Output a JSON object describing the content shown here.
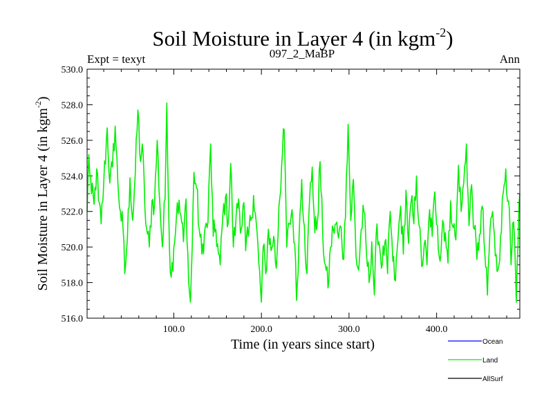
{
  "chart_data": {
    "type": "line",
    "title_main": "Soil Moisture in Layer 4 (in kgm",
    "title_exp": "-2",
    "title_close": ")",
    "subtitle_left": "Expt = texyt",
    "subtitle_center": "097_2_MaBP",
    "subtitle_right": "Ann",
    "xlabel": "Time (in years since start)",
    "ylabel_main": "Soil Moisture in Layer 4 (in kgm",
    "ylabel_exp": "-2",
    "ylabel_close": ")",
    "xlim": [
      1,
      495
    ],
    "ylim": [
      516.0,
      530.0
    ],
    "xticks": [
      100.0,
      200.0,
      300.0,
      400.0
    ],
    "xtick_labels": [
      "100.0",
      "200.0",
      "300.0",
      "400.0"
    ],
    "yticks": [
      516.0,
      518.0,
      520.0,
      522.0,
      524.0,
      526.0,
      528.0,
      530.0
    ],
    "ytick_labels": [
      "516.0",
      "518.0",
      "520.0",
      "522.0",
      "524.0",
      "526.0",
      "528.0",
      "530.0"
    ],
    "legend_position": "bottom-right, outside plot",
    "legend": [
      {
        "name": "Ocean",
        "color": "#0000ff"
      },
      {
        "name": "Land",
        "color": "#00ee00"
      },
      {
        "name": "AllSurf",
        "color": "#000000"
      }
    ],
    "series": [
      {
        "name": "Land",
        "color": "#00ee00",
        "keypoints": [
          [
            1,
            522.0
          ],
          [
            3,
            525.2
          ],
          [
            6,
            523.0
          ],
          [
            9,
            522.4
          ],
          [
            12,
            524.4
          ],
          [
            14,
            522.6
          ],
          [
            17,
            521.3
          ],
          [
            20,
            523.6
          ],
          [
            24,
            526.7
          ],
          [
            27,
            523.6
          ],
          [
            30,
            524.5
          ],
          [
            33,
            526.8
          ],
          [
            36,
            523.7
          ],
          [
            39,
            522.0
          ],
          [
            42,
            521.0
          ],
          [
            44,
            518.5
          ],
          [
            47,
            520.5
          ],
          [
            50,
            523.9
          ],
          [
            53,
            521.5
          ],
          [
            56,
            524.1
          ],
          [
            59,
            527.7
          ],
          [
            62,
            524.8
          ],
          [
            64,
            525.8
          ],
          [
            67,
            522.2
          ],
          [
            69,
            521.0
          ],
          [
            72,
            520.0
          ],
          [
            75,
            522.6
          ],
          [
            78,
            522.4
          ],
          [
            81,
            526.0
          ],
          [
            84,
            522.5
          ],
          [
            87,
            520.0
          ],
          [
            90,
            522.7
          ],
          [
            92,
            528.1
          ],
          [
            95,
            520.0
          ],
          [
            97,
            518.3
          ],
          [
            100,
            520.0
          ],
          [
            104,
            522.5
          ],
          [
            108,
            521.8
          ],
          [
            111,
            520.3
          ],
          [
            114,
            522.7
          ],
          [
            117,
            518.0
          ],
          [
            119,
            516.9
          ],
          [
            121,
            520.0
          ],
          [
            123,
            524.2
          ],
          [
            126,
            523.3
          ],
          [
            129,
            521.0
          ],
          [
            132,
            519.6
          ],
          [
            135,
            520.8
          ],
          [
            139,
            521.4
          ],
          [
            142,
            525.8
          ],
          [
            145,
            520.6
          ],
          [
            148,
            521.0
          ],
          [
            151,
            519.6
          ],
          [
            153,
            519.0
          ],
          [
            156,
            521.8
          ],
          [
            159,
            522.8
          ],
          [
            162,
            521.3
          ],
          [
            165,
            524.7
          ],
          [
            168,
            520.0
          ],
          [
            171,
            521.6
          ],
          [
            174,
            522.7
          ],
          [
            177,
            521.0
          ],
          [
            180,
            522.5
          ],
          [
            182,
            519.8
          ],
          [
            185,
            520.6
          ],
          [
            188,
            521.5
          ],
          [
            191,
            522.9
          ],
          [
            194,
            521.4
          ],
          [
            197,
            519.1
          ],
          [
            200,
            516.9
          ],
          [
            202,
            520.0
          ],
          [
            205,
            518.5
          ],
          [
            208,
            521.0
          ],
          [
            211,
            519.8
          ],
          [
            214,
            520.6
          ],
          [
            217,
            518.8
          ],
          [
            220,
            522.3
          ],
          [
            223,
            524.5
          ],
          [
            226,
            526.6
          ],
          [
            229,
            520.0
          ],
          [
            232,
            521.3
          ],
          [
            235,
            522.1
          ],
          [
            238,
            520.2
          ],
          [
            240,
            517.0
          ],
          [
            243,
            520.6
          ],
          [
            246,
            523.8
          ],
          [
            249,
            521.2
          ],
          [
            252,
            518.5
          ],
          [
            255,
            522.7
          ],
          [
            258,
            524.5
          ],
          [
            261,
            520.8
          ],
          [
            264,
            521.5
          ],
          [
            267,
            524.8
          ],
          [
            270,
            520.6
          ],
          [
            273,
            519.0
          ],
          [
            276,
            517.7
          ],
          [
            279,
            520.0
          ],
          [
            282,
            521.0
          ],
          [
            285,
            521.3
          ],
          [
            288,
            520.5
          ],
          [
            291,
            521.1
          ],
          [
            294,
            519.3
          ],
          [
            297,
            524.0
          ],
          [
            299,
            526.9
          ],
          [
            302,
            521.5
          ],
          [
            305,
            523.8
          ],
          [
            308,
            519.5
          ],
          [
            311,
            518.7
          ],
          [
            314,
            521.0
          ],
          [
            317,
            522.0
          ],
          [
            320,
            519.6
          ],
          [
            323,
            518.0
          ],
          [
            326,
            520.3
          ],
          [
            329,
            517.3
          ],
          [
            332,
            521.3
          ],
          [
            335,
            520.0
          ],
          [
            338,
            519.0
          ],
          [
            341,
            520.3
          ],
          [
            344,
            518.5
          ],
          [
            347,
            522.0
          ],
          [
            350,
            519.2
          ],
          [
            353,
            518.1
          ],
          [
            356,
            520.5
          ],
          [
            359,
            522.3
          ],
          [
            362,
            519.6
          ],
          [
            365,
            523.2
          ],
          [
            368,
            520.2
          ],
          [
            371,
            522.6
          ],
          [
            374,
            521.3
          ],
          [
            377,
            524.0
          ],
          [
            380,
            521.2
          ],
          [
            383,
            518.9
          ],
          [
            386,
            520.2
          ],
          [
            389,
            519.0
          ],
          [
            392,
            522.1
          ],
          [
            395,
            520.6
          ],
          [
            398,
            523.1
          ],
          [
            401,
            521.2
          ],
          [
            404,
            519.2
          ],
          [
            407,
            521.5
          ],
          [
            410,
            520.8
          ],
          [
            413,
            519.1
          ],
          [
            416,
            522.6
          ],
          [
            419,
            521.1
          ],
          [
            422,
            520.4
          ],
          [
            425,
            524.6
          ],
          [
            428,
            522.0
          ],
          [
            431,
            523.6
          ],
          [
            434,
            525.8
          ],
          [
            437,
            521.2
          ],
          [
            440,
            523.5
          ],
          [
            443,
            521.0
          ],
          [
            446,
            519.3
          ],
          [
            449,
            520.7
          ],
          [
            452,
            522.3
          ],
          [
            455,
            519.7
          ],
          [
            458,
            517.3
          ],
          [
            461,
            521.0
          ],
          [
            464,
            522.0
          ],
          [
            467,
            519.5
          ],
          [
            470,
            518.7
          ],
          [
            473,
            520.6
          ],
          [
            476,
            523.0
          ],
          [
            479,
            524.4
          ],
          [
            482,
            522.6
          ],
          [
            485,
            519.0
          ],
          [
            488,
            521.4
          ],
          [
            491,
            516.9
          ],
          [
            493,
            520.2
          ],
          [
            495,
            523.0
          ]
        ]
      }
    ]
  }
}
